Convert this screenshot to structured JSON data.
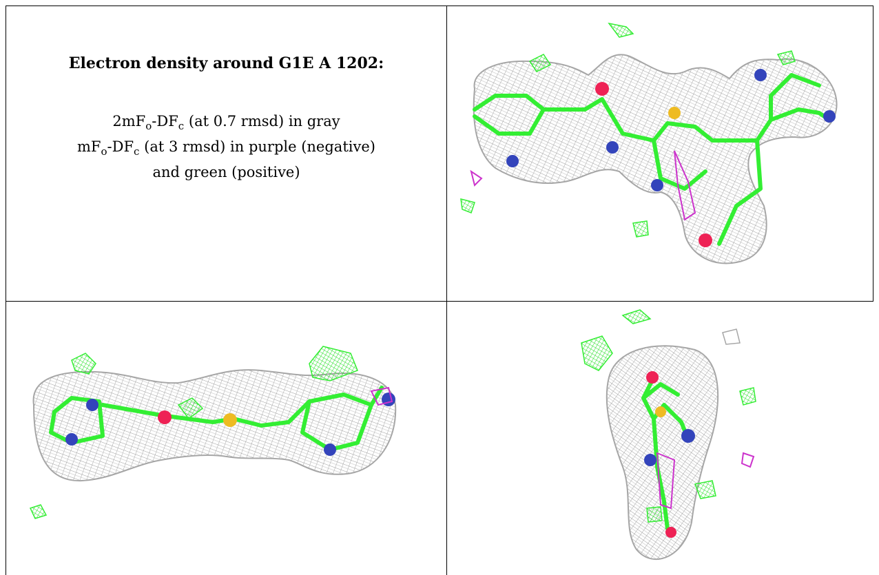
{
  "legend": {
    "title": "Electron density around G1E A 1202:",
    "line1": {
      "pre": "2mF",
      "sub1": "o",
      "mid": "-DF",
      "sub2": "c",
      "post": " (at 0.7 rmsd) in gray"
    },
    "line2": {
      "pre": "mF",
      "sub1": "o",
      "mid": "-DF",
      "sub2": "c",
      "post": " (at 3 rmsd) in purple (negative)"
    },
    "line3": "and green (positive)"
  },
  "colors": {
    "density_mesh": "#a6a6a6",
    "carbon": "#33ee33",
    "nitrogen": "#3344bb",
    "oxygen": "#ee2255",
    "sulfur": "#eebb22",
    "negative_density": "#cc33cc",
    "positive_density": "#33ee33"
  }
}
